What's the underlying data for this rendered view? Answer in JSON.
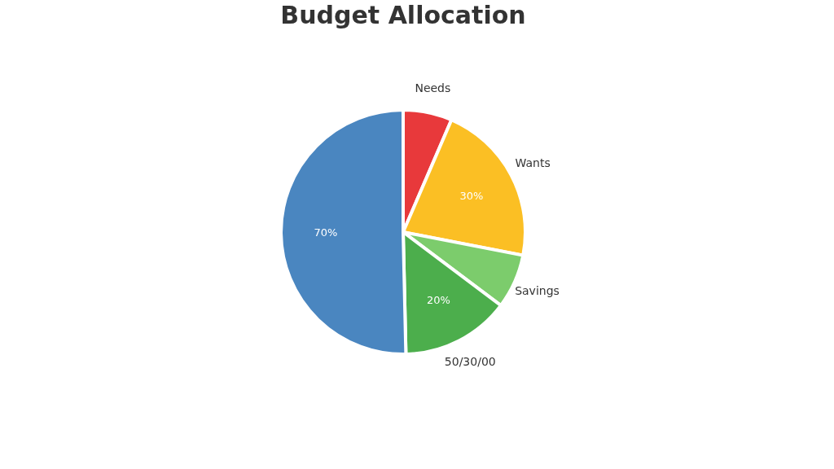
{
  "chart_data": {
    "type": "pie",
    "title": "Budget Allocation",
    "categories": [
      "Needs",
      "Wants",
      "Savings",
      "50/30/00",
      null
    ],
    "values": [
      9,
      30,
      10,
      20,
      70
    ],
    "value_labels": [
      null,
      "30%",
      null,
      "20%",
      "70%"
    ],
    "colors": [
      "#e8393b",
      "#fbbf24",
      "#7ccc6c",
      "#4cae4c",
      "#4a86c0"
    ],
    "legend": false
  }
}
